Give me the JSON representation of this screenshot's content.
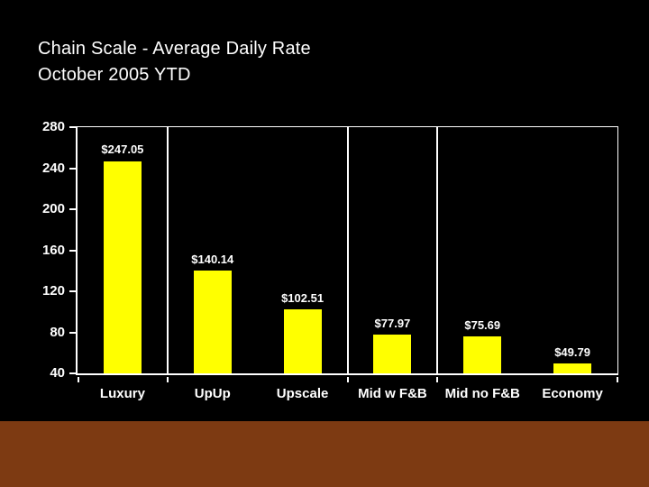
{
  "title": {
    "line1": "Chain Scale - Average Daily Rate",
    "line2": "October 2005 YTD"
  },
  "chart_data": {
    "type": "bar",
    "title": "Chain Scale - Average Daily Rate",
    "subtitle": "October 2005 YTD",
    "categories": [
      "Luxury",
      "UpUp",
      "Upscale",
      "Mid w F&B",
      "Mid no F&B",
      "Economy"
    ],
    "values": [
      247.05,
      140.14,
      102.51,
      77.97,
      75.69,
      49.79
    ],
    "value_labels": [
      "$247.05",
      "$140.14",
      "$102.51",
      "$77.97",
      "$75.69",
      "$49.79"
    ],
    "xlabel": "",
    "ylabel": "",
    "ylim": [
      40,
      280
    ],
    "yticks": [
      280,
      240,
      200,
      160,
      120,
      80,
      40
    ],
    "grid": "partial vertical category dividers only",
    "category_dividers_after": [
      "Luxury",
      "Upscale",
      "Mid w F&B"
    ],
    "legend": "none",
    "bar_color": "#FFFF00"
  },
  "colors": {
    "background": "#000000",
    "bar": "#FFFF00",
    "text": "#FFFFFF",
    "axis": "#FFFFFF",
    "footer": "#7D3A12"
  }
}
